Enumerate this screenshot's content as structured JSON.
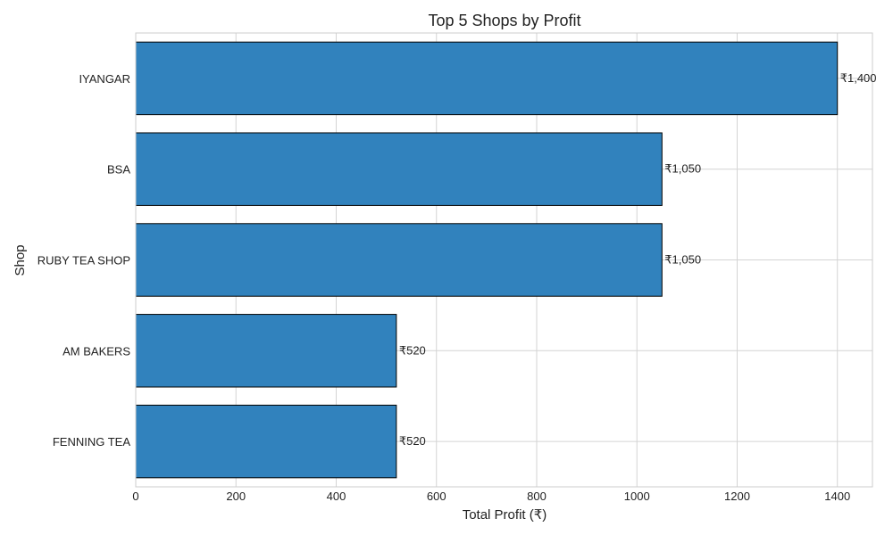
{
  "chart_data": {
    "type": "bar",
    "orientation": "horizontal",
    "title": "Top 5 Shops by Profit",
    "xlabel": "Total Profit (₹)",
    "ylabel": "Shop",
    "categories": [
      "IYANGAR",
      "BSA",
      "RUBY TEA SHOP",
      "AM BAKERS",
      "FENNING TEA"
    ],
    "values": [
      1400,
      1050,
      1050,
      520,
      520
    ],
    "value_labels": [
      "₹1,400",
      "₹1,050",
      "₹1,050",
      "₹520",
      "₹520"
    ],
    "xlim": [
      0,
      1470
    ],
    "xticks": [
      0,
      200,
      400,
      600,
      800,
      1000,
      1200,
      1400
    ],
    "grid": true,
    "bar_color": "#3182bd",
    "bar_edge_color": "#000000"
  }
}
